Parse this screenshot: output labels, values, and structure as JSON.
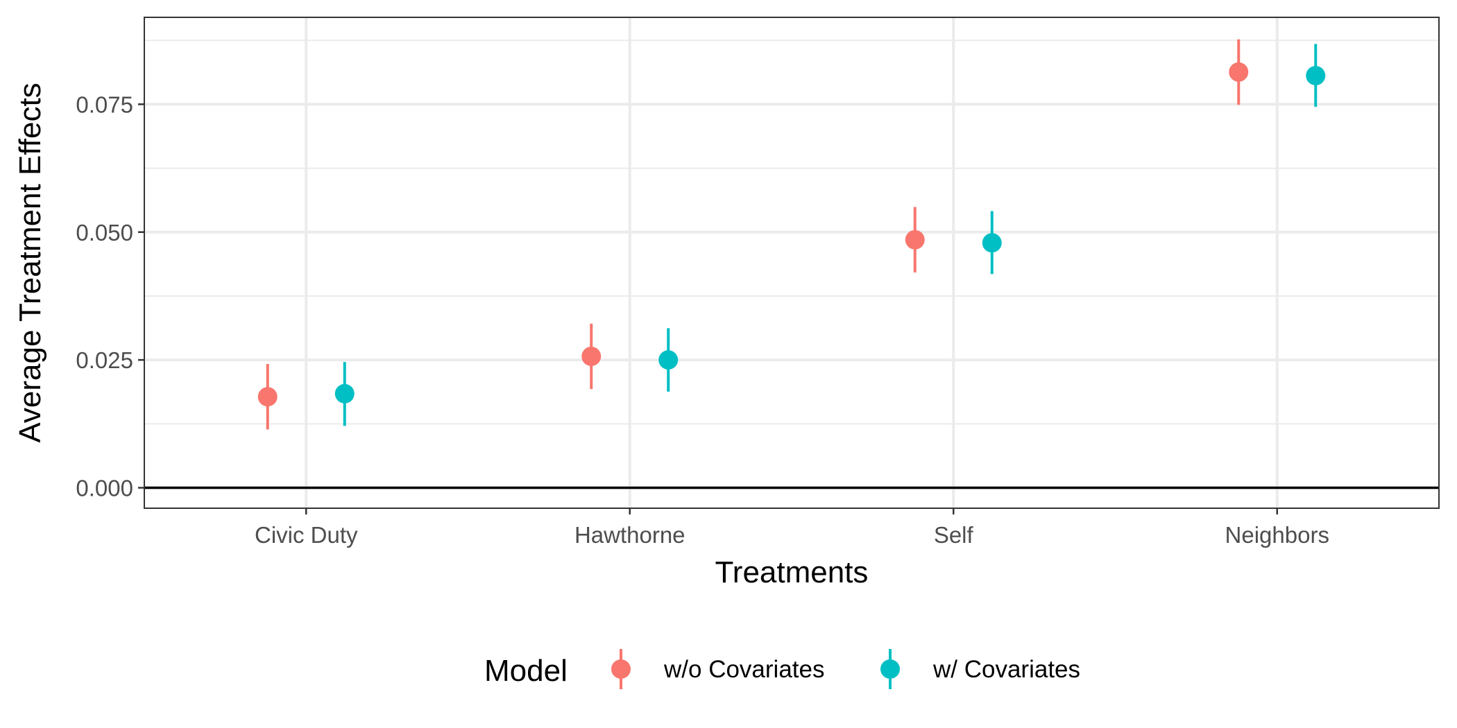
{
  "chart_data": {
    "type": "scatter",
    "title": "",
    "xlabel": "Treatments",
    "ylabel": "Average Treatment Effects",
    "categories": [
      "Civic Duty",
      "Hawthorne",
      "Self",
      "Neighbors"
    ],
    "ylim": [
      -0.004,
      0.092
    ],
    "yticks": [
      "0.000",
      "0.025",
      "0.050",
      "0.075"
    ],
    "grid": true,
    "reference_line_y": 0,
    "legend": {
      "title": "Model",
      "position": "bottom"
    },
    "series": [
      {
        "name": "w/o Covariates",
        "color": "#F8766D",
        "values": [
          0.0178,
          0.0257,
          0.0485,
          0.0813
        ],
        "lower": [
          0.0114,
          0.0193,
          0.0421,
          0.0749
        ],
        "upper": [
          0.0242,
          0.0321,
          0.0549,
          0.0877
        ]
      },
      {
        "name": "w/ Covariates",
        "color": "#00BFC4",
        "values": [
          0.0184,
          0.025,
          0.0479,
          0.0806
        ],
        "lower": [
          0.0121,
          0.0188,
          0.0418,
          0.0745
        ],
        "upper": [
          0.0246,
          0.0312,
          0.0541,
          0.0868
        ]
      }
    ]
  }
}
